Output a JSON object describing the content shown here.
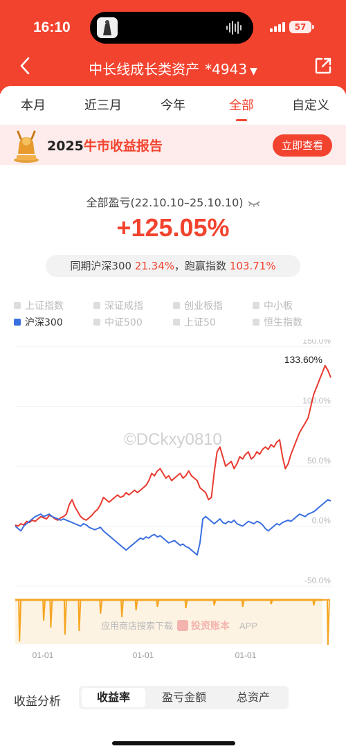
{
  "status_bar": {
    "time": "16:10",
    "battery": "57"
  },
  "nav": {
    "title": "中长线成长类资产",
    "account": "*4943",
    "caret": "▼"
  },
  "tabs": [
    "本月",
    "近三月",
    "今年",
    "全部",
    "自定义"
  ],
  "active_tab": "全部",
  "banner": {
    "year": "2025",
    "highlight": "牛市收益报告",
    "button": "立即查看"
  },
  "summary": {
    "label": "全部盈亏(22.10.10–25.10.10)",
    "value": "+125.05%",
    "compare_prefix": "同期沪深300",
    "compare_index_value": "21.34%",
    "compare_mid": "，跑赢指数",
    "compare_excess": "103.71%"
  },
  "legend": [
    {
      "name": "上证指数",
      "active": false
    },
    {
      "name": "深证成指",
      "active": false
    },
    {
      "name": "创业板指",
      "active": false
    },
    {
      "name": "中小板",
      "active": false
    },
    {
      "name": "沪深300",
      "active": true
    },
    {
      "name": "中证500",
      "active": false
    },
    {
      "name": "上证50",
      "active": false
    },
    {
      "name": "恒生指数",
      "active": false
    }
  ],
  "chart_data": {
    "type": "line",
    "y_ticks": [
      "150.0%",
      "100.0%",
      "50.0%",
      "0.0%",
      "-50.0%"
    ],
    "ylim": [
      -50,
      150
    ],
    "x_ticks": [
      "01-01",
      "01-01",
      "01-01"
    ],
    "peak_label": "133.60%",
    "series": [
      {
        "name": "收益率",
        "color": "#e83a2f",
        "x": [
          0,
          4,
          8,
          12,
          16,
          20,
          24,
          28,
          32,
          36,
          40,
          44,
          48,
          52,
          56,
          60,
          64,
          68,
          72,
          76,
          80,
          84,
          88,
          92,
          96,
          100,
          104,
          108,
          112,
          116,
          120,
          124,
          128,
          132,
          136,
          140,
          144,
          148,
          152,
          156,
          160,
          164,
          168,
          172,
          176,
          180,
          184,
          188,
          192,
          196,
          200,
          204,
          208,
          212,
          216,
          220,
          224,
          228,
          232,
          236,
          240,
          244,
          248,
          252,
          256,
          260,
          264,
          268,
          272,
          276,
          280,
          284,
          288,
          292,
          296,
          300,
          304,
          308,
          312,
          316,
          320,
          324,
          328,
          332,
          336,
          340,
          344,
          348,
          352,
          356,
          360,
          364,
          368,
          372,
          376,
          380,
          384,
          388,
          392,
          396,
          400,
          404,
          408,
          412,
          416,
          420,
          424,
          428,
          432,
          436,
          440,
          444
        ],
        "values": [
          1,
          0,
          2,
          1,
          4,
          3,
          5,
          4,
          6,
          8,
          7,
          6,
          9,
          8,
          6,
          5,
          7,
          8,
          10,
          18,
          22,
          16,
          12,
          8,
          6,
          5,
          7,
          9,
          12,
          14,
          18,
          24,
          22,
          20,
          22,
          24,
          26,
          24,
          25,
          28,
          26,
          28,
          30,
          28,
          30,
          32,
          34,
          38,
          44,
          42,
          46,
          48,
          44,
          40,
          42,
          38,
          40,
          42,
          44,
          40,
          42,
          46,
          42,
          40,
          38,
          32,
          30,
          28,
          22,
          24,
          45,
          62,
          66,
          58,
          50,
          52,
          54,
          48,
          52,
          58,
          56,
          60,
          62,
          56,
          58,
          62,
          60,
          64,
          66,
          64,
          68,
          66,
          70,
          72,
          58,
          48,
          52,
          60,
          66,
          72,
          78,
          82,
          86,
          90,
          100,
          110,
          116,
          122,
          128,
          134,
          130,
          124
        ]
      },
      {
        "name": "沪深300",
        "color": "#3a6fe0",
        "x": [
          0,
          4,
          8,
          12,
          16,
          20,
          24,
          28,
          32,
          36,
          40,
          44,
          48,
          52,
          56,
          60,
          64,
          68,
          72,
          76,
          80,
          84,
          88,
          92,
          96,
          100,
          104,
          108,
          112,
          116,
          120,
          124,
          128,
          132,
          136,
          140,
          144,
          148,
          152,
          156,
          160,
          164,
          168,
          172,
          176,
          180,
          184,
          188,
          192,
          196,
          200,
          204,
          208,
          212,
          216,
          220,
          224,
          228,
          232,
          236,
          240,
          244,
          248,
          252,
          256,
          260,
          264,
          268,
          272,
          276,
          280,
          284,
          288,
          292,
          296,
          300,
          304,
          308,
          312,
          316,
          320,
          324,
          328,
          332,
          336,
          340,
          344,
          348,
          352,
          356,
          360,
          364,
          368,
          372,
          376,
          380,
          384,
          388,
          392,
          396,
          400,
          404,
          408,
          412,
          416,
          420,
          424,
          428,
          432,
          436,
          440,
          444
        ],
        "values": [
          0,
          -2,
          -4,
          0,
          2,
          4,
          6,
          8,
          9,
          10,
          8,
          9,
          10,
          8,
          7,
          6,
          5,
          6,
          5,
          4,
          3,
          2,
          1,
          0,
          2,
          1,
          -1,
          -2,
          -3,
          -2,
          -1,
          -4,
          -6,
          -8,
          -10,
          -12,
          -14,
          -16,
          -18,
          -20,
          -18,
          -16,
          -14,
          -12,
          -10,
          -11,
          -9,
          -10,
          -8,
          -7,
          -9,
          -8,
          -10,
          -12,
          -14,
          -13,
          -12,
          -14,
          -16,
          -15,
          -17,
          -18,
          -20,
          -22,
          -24,
          -14,
          6,
          8,
          6,
          4,
          2,
          4,
          6,
          3,
          2,
          4,
          3,
          5,
          2,
          1,
          0,
          2,
          4,
          3,
          2,
          4,
          3,
          1,
          -2,
          -4,
          -2,
          0,
          2,
          1,
          3,
          4,
          5,
          4,
          6,
          8,
          10,
          9,
          8,
          10,
          11,
          12,
          14,
          16,
          18,
          20,
          22,
          21
        ]
      }
    ],
    "position_bars_note": "持仓仓位"
  },
  "watermark": {
    "text": "©DCkxy0810",
    "store_note": "应用商店搜索下载",
    "app_name": "投资账本",
    "app_suffix": "APP"
  },
  "bottom": {
    "label": "收益分析",
    "segments": [
      "收益率",
      "盈亏金额",
      "总资产"
    ],
    "active_segment": "收益率"
  }
}
